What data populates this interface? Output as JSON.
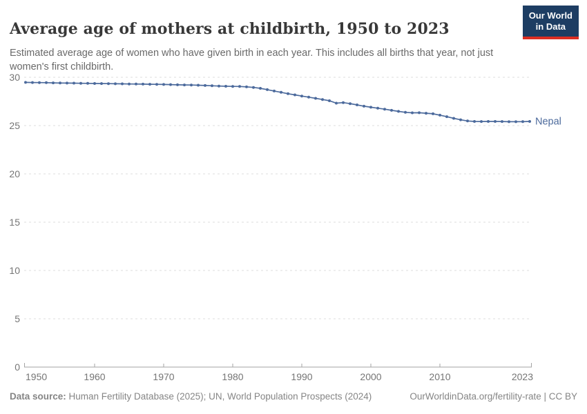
{
  "header": {
    "title": "Average age of mothers at childbirth, 1950 to 2023",
    "subtitle": "Estimated average age of women who have given birth in each year. This includes all births that year, not just\nwomen's first childbirth."
  },
  "logo": {
    "line1": "Our World",
    "line2": "in Data",
    "bg_color": "#1d3d63",
    "stripe_color": "#dc2e22"
  },
  "footer": {
    "source_label": "Data source:",
    "source_text": " Human Fertility Database (2025); UN, World Population Prospects (2024)",
    "credit": "OurWorldinData.org/fertility-rate | CC BY"
  },
  "chart_data": {
    "type": "line",
    "title": "Average age of mothers at childbirth, 1950 to 2023",
    "xlabel": "",
    "ylabel": "",
    "ylim": [
      0,
      30
    ],
    "xlim": [
      1950,
      2023
    ],
    "yticks": [
      0,
      5,
      10,
      15,
      20,
      25,
      30
    ],
    "xticks": [
      1950,
      1960,
      1970,
      1980,
      1990,
      2000,
      2010,
      2023
    ],
    "grid": "horizontal dashed",
    "legend": "end-of-line label",
    "colors": {
      "line": "#4c6a9c",
      "grid": "#dddddd",
      "axis": "#a3a3a3",
      "tick_label": "#757575"
    },
    "x": [
      1950,
      1951,
      1952,
      1953,
      1954,
      1955,
      1956,
      1957,
      1958,
      1959,
      1960,
      1961,
      1962,
      1963,
      1964,
      1965,
      1966,
      1967,
      1968,
      1969,
      1970,
      1971,
      1972,
      1973,
      1974,
      1975,
      1976,
      1977,
      1978,
      1979,
      1980,
      1981,
      1982,
      1983,
      1984,
      1985,
      1986,
      1987,
      1988,
      1989,
      1990,
      1991,
      1992,
      1993,
      1994,
      1995,
      1996,
      1997,
      1998,
      1999,
      2000,
      2001,
      2002,
      2003,
      2004,
      2005,
      2006,
      2007,
      2008,
      2009,
      2010,
      2011,
      2012,
      2013,
      2014,
      2015,
      2016,
      2017,
      2018,
      2019,
      2020,
      2021,
      2022,
      2023
    ],
    "series": [
      {
        "name": "Nepal",
        "values": [
          29.47,
          29.46,
          29.45,
          29.44,
          29.42,
          29.41,
          29.4,
          29.39,
          29.38,
          29.37,
          29.36,
          29.35,
          29.34,
          29.33,
          29.32,
          29.31,
          29.3,
          29.29,
          29.28,
          29.27,
          29.26,
          29.24,
          29.22,
          29.21,
          29.2,
          29.18,
          29.15,
          29.12,
          29.09,
          29.07,
          29.06,
          29.05,
          29.01,
          28.95,
          28.86,
          28.72,
          28.58,
          28.44,
          28.3,
          28.18,
          28.06,
          27.94,
          27.82,
          27.7,
          27.57,
          27.32,
          27.38,
          27.27,
          27.14,
          27.01,
          26.9,
          26.8,
          26.7,
          26.58,
          26.47,
          26.37,
          26.32,
          26.33,
          26.28,
          26.22,
          26.08,
          25.92,
          25.75,
          25.6,
          25.48,
          25.43,
          25.42,
          25.43,
          25.43,
          25.42,
          25.4,
          25.4,
          25.41,
          25.43
        ]
      }
    ]
  }
}
